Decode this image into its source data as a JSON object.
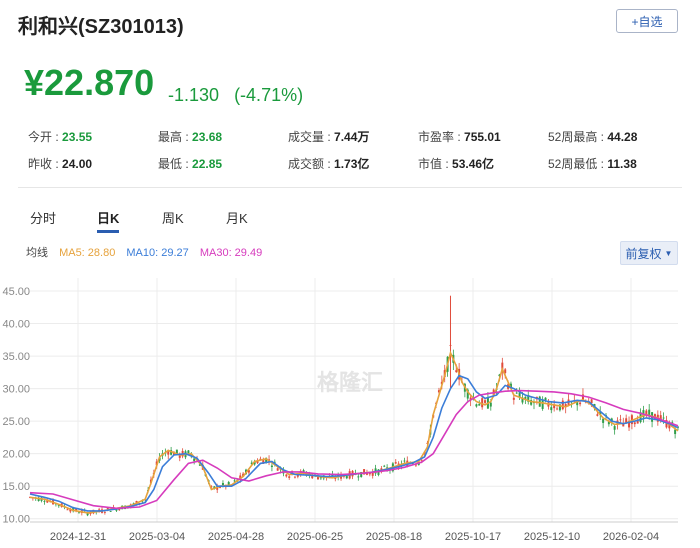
{
  "header": {
    "title": "利和兴(SZ301013)",
    "add_watchlist_label": "+自选"
  },
  "quote": {
    "price": "¥22.870",
    "change": "-1.130",
    "change_pct": "(-4.71%)"
  },
  "stats": {
    "open_label": "今开 :",
    "open": "23.55",
    "prev_close_label": "昨收 :",
    "prev_close": "24.00",
    "high_label": "最高 :",
    "high": "23.68",
    "low_label": "最低 :",
    "low": "22.85",
    "volume_label": "成交量 :",
    "volume": "7.44万",
    "amount_label": "成交额 :",
    "amount": "1.73亿",
    "pe_label": "市盈率 :",
    "pe": "755.01",
    "mktcap_label": "市值 :",
    "mktcap": "53.46亿",
    "w52_high_label": "52周最高 :",
    "w52_high": "44.28",
    "w52_low_label": "52周最低 :",
    "w52_low": "11.38"
  },
  "tabs": [
    "分时",
    "日K",
    "周K",
    "月K"
  ],
  "active_tab": "日K",
  "ma_legend": {
    "label": "均线",
    "ma5": "MA5: 28.80",
    "ma10": "MA10: 29.27",
    "ma30": "MA30: 29.49"
  },
  "adjust_button": "前复权",
  "watermark": "格隆汇",
  "colors": {
    "down_green": "#1a9a3c",
    "accent_blue": "#2a5db0",
    "ma5": "#e6a23c",
    "ma10": "#3b7dd8",
    "ma30": "#d63bbd"
  },
  "chart_data": {
    "type": "line",
    "y_ticks": [
      "45.00",
      "40.00",
      "35.00",
      "30.00",
      "25.00",
      "20.00",
      "15.00",
      "10.00"
    ],
    "ylim": [
      9.5,
      47
    ],
    "x_ticks": [
      "2024-12-31",
      "2025-03-04",
      "2025-04-28",
      "2025-06-25",
      "2025-08-18",
      "2025-10-17",
      "2025-12-10",
      "2026-02-04"
    ],
    "grid": true,
    "series": [
      {
        "name": "MA5",
        "color": "#e6a23c",
        "points": [
          [
            0,
            13.3
          ],
          [
            5,
            13.0
          ],
          [
            10,
            12.2
          ],
          [
            15,
            11.3
          ],
          [
            20,
            10.9
          ],
          [
            25,
            11.2
          ],
          [
            30,
            11.6
          ],
          [
            35,
            12.0
          ],
          [
            40,
            13.0
          ],
          [
            42,
            15.5
          ],
          [
            45,
            19.5
          ],
          [
            48,
            20.5
          ],
          [
            52,
            19.8
          ],
          [
            56,
            20.0
          ],
          [
            60,
            18.0
          ],
          [
            63,
            14.5
          ],
          [
            66,
            15.0
          ],
          [
            70,
            15.2
          ],
          [
            74,
            16.5
          ],
          [
            78,
            18.8
          ],
          [
            82,
            19.2
          ],
          [
            86,
            18.0
          ],
          [
            90,
            16.8
          ],
          [
            95,
            17.0
          ],
          [
            100,
            16.5
          ],
          [
            105,
            16.3
          ],
          [
            110,
            16.7
          ],
          [
            115,
            17.0
          ],
          [
            120,
            17.2
          ],
          [
            125,
            17.8
          ],
          [
            130,
            18.5
          ],
          [
            135,
            18.8
          ],
          [
            138,
            21.0
          ],
          [
            140,
            26.0
          ],
          [
            142,
            29.0
          ],
          [
            144,
            32.0
          ],
          [
            146,
            35.5
          ],
          [
            148,
            33.5
          ],
          [
            150,
            31.0
          ],
          [
            152,
            29.5
          ],
          [
            155,
            28.0
          ],
          [
            158,
            27.5
          ],
          [
            160,
            28.0
          ],
          [
            162,
            30.0
          ],
          [
            164,
            33.0
          ],
          [
            166,
            31.0
          ],
          [
            168,
            29.0
          ],
          [
            171,
            28.5
          ],
          [
            174,
            28.0
          ],
          [
            178,
            27.8
          ],
          [
            182,
            27.5
          ],
          [
            186,
            27.2
          ],
          [
            190,
            28.0
          ],
          [
            192,
            28.3
          ],
          [
            195,
            27.5
          ],
          [
            199,
            25.5
          ],
          [
            203,
            24.5
          ],
          [
            207,
            24.7
          ],
          [
            211,
            25.5
          ],
          [
            214,
            26.0
          ],
          [
            218,
            25.5
          ],
          [
            222,
            24.5
          ],
          [
            225,
            23.5
          ]
        ]
      },
      {
        "name": "MA10",
        "color": "#3b7dd8",
        "points": [
          [
            0,
            13.8
          ],
          [
            5,
            13.3
          ],
          [
            10,
            12.7
          ],
          [
            15,
            11.7
          ],
          [
            20,
            11.2
          ],
          [
            25,
            11.2
          ],
          [
            30,
            11.5
          ],
          [
            35,
            11.9
          ],
          [
            40,
            12.5
          ],
          [
            43,
            14.5
          ],
          [
            46,
            18.0
          ],
          [
            50,
            19.8
          ],
          [
            54,
            20.0
          ],
          [
            58,
            19.3
          ],
          [
            62,
            17.0
          ],
          [
            65,
            15.0
          ],
          [
            70,
            15.0
          ],
          [
            75,
            16.2
          ],
          [
            80,
            18.5
          ],
          [
            84,
            18.8
          ],
          [
            88,
            17.5
          ],
          [
            92,
            16.8
          ],
          [
            97,
            16.7
          ],
          [
            103,
            16.5
          ],
          [
            108,
            16.6
          ],
          [
            113,
            16.9
          ],
          [
            118,
            17.1
          ],
          [
            123,
            17.5
          ],
          [
            128,
            18.0
          ],
          [
            133,
            18.6
          ],
          [
            137,
            19.5
          ],
          [
            140,
            22.5
          ],
          [
            143,
            27.0
          ],
          [
            146,
            30.0
          ],
          [
            149,
            32.0
          ],
          [
            152,
            31.5
          ],
          [
            155,
            29.5
          ],
          [
            158,
            28.5
          ],
          [
            162,
            29.0
          ],
          [
            165,
            30.5
          ],
          [
            168,
            30.0
          ],
          [
            172,
            29.0
          ],
          [
            176,
            28.5
          ],
          [
            180,
            28.0
          ],
          [
            185,
            27.8
          ],
          [
            190,
            28.2
          ],
          [
            194,
            28.0
          ],
          [
            198,
            26.5
          ],
          [
            202,
            25.0
          ],
          [
            206,
            24.6
          ],
          [
            210,
            25.0
          ],
          [
            214,
            25.5
          ],
          [
            218,
            25.2
          ],
          [
            222,
            24.6
          ],
          [
            225,
            24.0
          ]
        ]
      },
      {
        "name": "MA30",
        "color": "#d63bbd",
        "points": [
          [
            0,
            14.0
          ],
          [
            8,
            13.8
          ],
          [
            15,
            12.9
          ],
          [
            22,
            12.0
          ],
          [
            30,
            11.6
          ],
          [
            38,
            11.8
          ],
          [
            44,
            12.8
          ],
          [
            50,
            16.0
          ],
          [
            55,
            18.5
          ],
          [
            60,
            19.0
          ],
          [
            65,
            17.8
          ],
          [
            70,
            16.3
          ],
          [
            76,
            15.8
          ],
          [
            82,
            16.6
          ],
          [
            88,
            17.2
          ],
          [
            94,
            17.2
          ],
          [
            100,
            16.9
          ],
          [
            108,
            16.8
          ],
          [
            116,
            17.0
          ],
          [
            124,
            17.4
          ],
          [
            130,
            17.9
          ],
          [
            136,
            18.7
          ],
          [
            140,
            20.0
          ],
          [
            144,
            23.0
          ],
          [
            148,
            26.0
          ],
          [
            152,
            28.0
          ],
          [
            156,
            29.0
          ],
          [
            160,
            29.3
          ],
          [
            165,
            29.6
          ],
          [
            170,
            29.7
          ],
          [
            176,
            29.6
          ],
          [
            182,
            29.5
          ],
          [
            188,
            29.2
          ],
          [
            194,
            28.7
          ],
          [
            200,
            27.8
          ],
          [
            206,
            26.8
          ],
          [
            212,
            26.2
          ],
          [
            218,
            25.4
          ],
          [
            225,
            24.3
          ]
        ]
      }
    ]
  }
}
